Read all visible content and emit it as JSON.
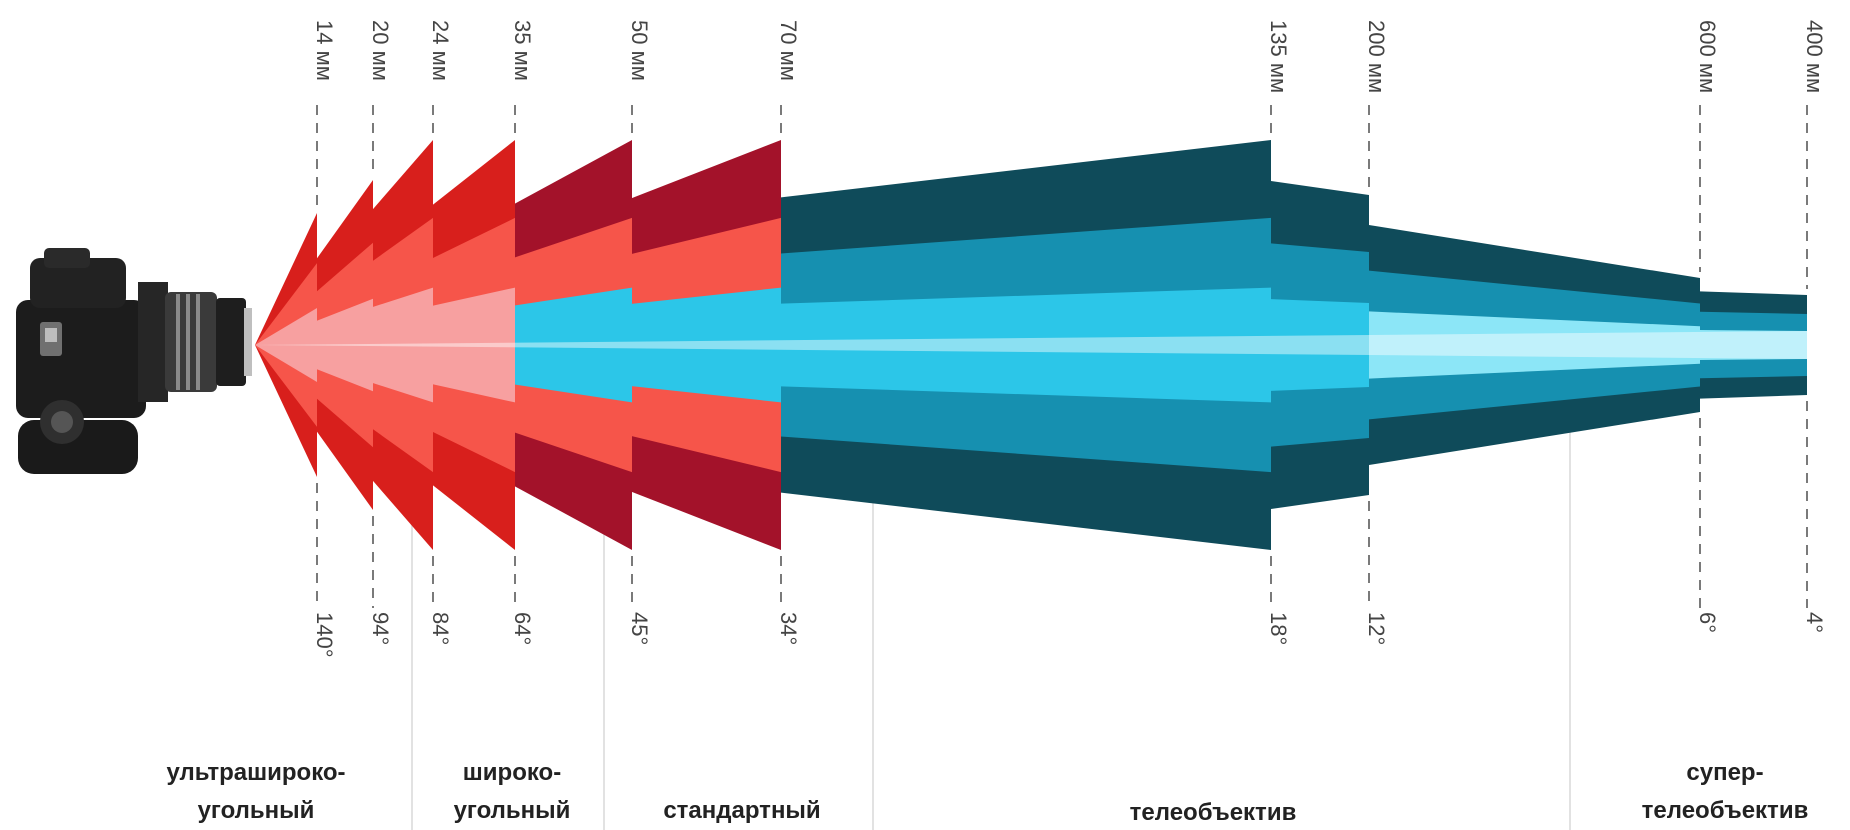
{
  "colors": {
    "red_dark": "#a3122a",
    "red_mid": "#d81f1c",
    "red_light": "#f6554a",
    "pink": "#f7a0a0",
    "teal_dark": "#0f4b5a",
    "teal_mid": "#1690b0",
    "cyan": "#2cc6e8",
    "cyan_light": "#8ce6f7",
    "guide": "#7a7a7a"
  },
  "camera": {
    "icon": "dslr-camera-icon"
  },
  "lenses": [
    {
      "focal": "14 мм",
      "angle": "140°"
    },
    {
      "focal": "20 мм",
      "angle": "94°"
    },
    {
      "focal": "24 мм",
      "angle": "84°"
    },
    {
      "focal": "35 мм",
      "angle": "64°"
    },
    {
      "focal": "50 мм",
      "angle": "45°"
    },
    {
      "focal": "70 мм",
      "angle": "34°"
    },
    {
      "focal": "135 мм",
      "angle": "18°"
    },
    {
      "focal": "200 мм",
      "angle": "12°"
    },
    {
      "focal": "600 мм",
      "angle": "6°"
    },
    {
      "focal": "400 мм",
      "angle": "4°"
    }
  ],
  "categories": [
    {
      "lines": [
        "ультрашироко-",
        "угольный"
      ]
    },
    {
      "lines": [
        "широко-",
        "угольный"
      ]
    },
    {
      "lines": [
        "стандартный"
      ]
    },
    {
      "lines": [
        "телеобъектив"
      ]
    },
    {
      "lines": [
        "супер-",
        "телеобъектив"
      ]
    }
  ]
}
